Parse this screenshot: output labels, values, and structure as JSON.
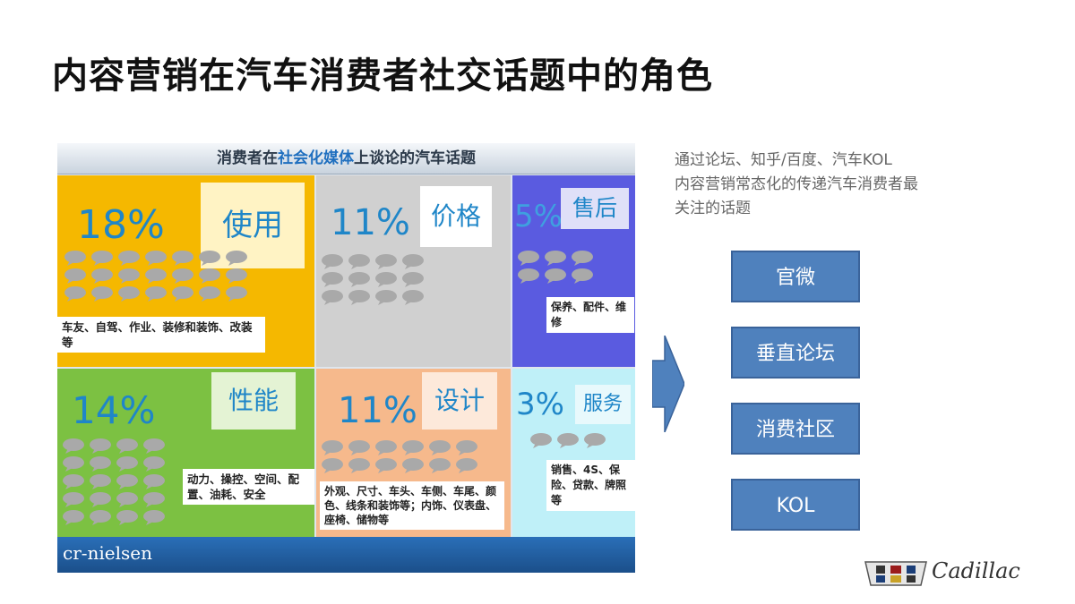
{
  "slide": {
    "title": "内容营销在汽车消费者社交话题中的角色",
    "description_line1": "通过论坛、知乎/百度、汽车KOL",
    "description_line2": "内容营销常态化的传递汽车消费者最",
    "description_line3": "关注的话题",
    "channels": [
      "官微",
      "垂直论坛",
      "消费社区",
      "KOL"
    ],
    "brand": "Cadillac"
  },
  "panel": {
    "header_pre": "消费者在",
    "header_highlight": "社会化媒体",
    "header_post": "上谈论的汽车话题",
    "logo": "cr-nielsen"
  },
  "chart_data": {
    "type": "treemap",
    "title": "消费者在社会化媒体上谈论的汽车话题",
    "categories": [
      "使用",
      "价格",
      "售后",
      "性能",
      "设计",
      "服务"
    ],
    "values": [
      18,
      11,
      5,
      14,
      11,
      3
    ],
    "labels": [
      "18%",
      "11%",
      "5%",
      "14%",
      "11%",
      "3%"
    ],
    "details": [
      "车友、自驾、作业、装修和装饰、改装等",
      "",
      "保养、配件、维修",
      "动力、操控、空间、配置、油耗、安全",
      "外观、尺寸、车头、车侧、车尾、颜色、线条和装饰等；内饰、仪表盘、座椅、储物等",
      "销售、4S、保险、贷款、牌照等"
    ],
    "colors": [
      "#f5b800",
      "#d0d0d0",
      "#5a5be0",
      "#7cc142",
      "#f6b98c",
      "#bff0f8"
    ]
  }
}
